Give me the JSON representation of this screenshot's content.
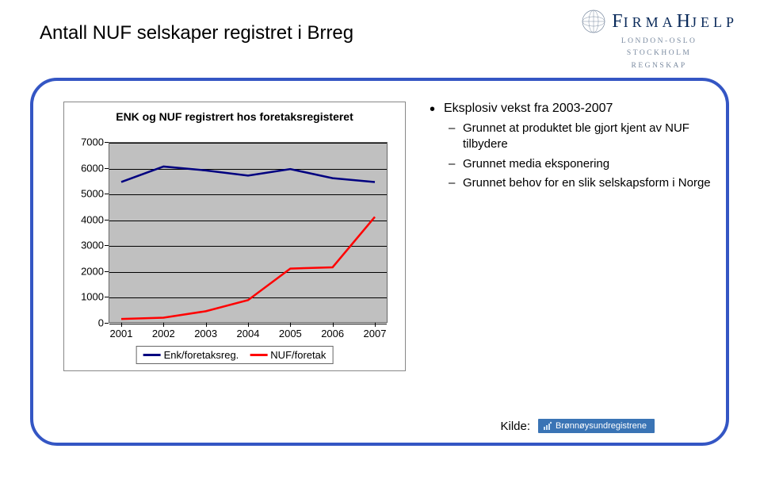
{
  "page": {
    "title": "Antall NUF selskaper registret i Brreg"
  },
  "logo": {
    "name_part1_first": "F",
    "name_part1_rest": "IRMA",
    "name_part2_first": "H",
    "name_part2_rest": "JELP",
    "sub1": "LONDON-OSLO",
    "sub2": "STOCKHOLM",
    "sub3": "REGNSKAP"
  },
  "bullets": {
    "lvl1": "Eksplosiv vekst fra 2003-2007",
    "lvl2": [
      "Grunnet at produktet ble gjort kjent av NUF tilbydere",
      "Grunnet media eksponering",
      "Grunnet behov for en slik selskapsform i Norge"
    ]
  },
  "chart": {
    "type": "line",
    "title": "ENK og NUF registrert hos foretaksregisteret",
    "title_fontsize": 14,
    "x_categories": [
      "2001",
      "2002",
      "2003",
      "2004",
      "2005",
      "2006",
      "2007"
    ],
    "ylim": [
      0,
      7000
    ],
    "ytick_step": 1000,
    "y_ticks": [
      0,
      1000,
      2000,
      3000,
      4000,
      5000,
      6000,
      7000
    ],
    "plot_bg": "#c0c0c0",
    "grid_color": "#000000",
    "axis_label_fontsize": 13,
    "line_width": 2.5,
    "marker": "none",
    "series": [
      {
        "name": "Enk/foretaksreg.",
        "color": "#000080",
        "values": [
          5450,
          6050,
          5900,
          5700,
          5950,
          5600,
          5450
        ]
      },
      {
        "name": "NUF/foretak",
        "color": "#ff0000",
        "values": [
          150,
          200,
          450,
          880,
          2100,
          2150,
          4100
        ]
      }
    ],
    "legend": {
      "position": "bottom",
      "border_color": "#666666",
      "bg": "#ffffff"
    }
  },
  "source": {
    "label": "Kilde:",
    "badge_text": "Brønnøysundregistrene",
    "badge_bg": "#3a74b5",
    "badge_fg": "#ffffff"
  }
}
